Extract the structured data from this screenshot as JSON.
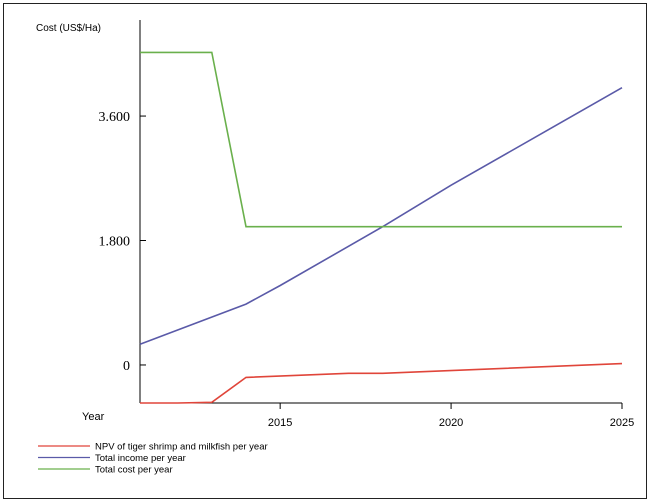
{
  "chart_data": {
    "type": "line",
    "ylabel": "Cost (US$/Ha)",
    "xlabel": "Year",
    "xlim": [
      2010.9,
      2025
    ],
    "ylim": [
      -550,
      4700
    ],
    "x_ticks": [
      2015,
      2020,
      2025
    ],
    "y_ticks": [
      0,
      1800,
      3600
    ],
    "y_tick_labels": [
      "0",
      "1.800",
      "3.600"
    ],
    "grid": false,
    "legend_position": "bottom-left",
    "series": [
      {
        "name": "NPV of tiger shrimp and milkfish per year",
        "color": "#e0453a",
        "x": [
          2010.9,
          2012,
          2013,
          2014,
          2017,
          2018,
          2025
        ],
        "y": [
          -550,
          -550,
          -540,
          -180,
          -120,
          -120,
          20
        ]
      },
      {
        "name": "Total income per year",
        "color": "#5a5aa8",
        "x": [
          2010.9,
          2014,
          2015,
          2018,
          2019,
          2020,
          2025
        ],
        "y": [
          300,
          880,
          1150,
          2000,
          2300,
          2600,
          4010
        ]
      },
      {
        "name": "Total cost per year",
        "color": "#6ab04c",
        "x": [
          2010.9,
          2013,
          2014,
          2025
        ],
        "y": [
          4520,
          4520,
          2000,
          2000
        ]
      }
    ]
  }
}
